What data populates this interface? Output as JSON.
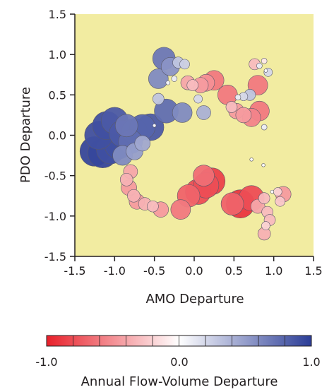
{
  "chart_data": {
    "type": "scatter",
    "xlabel": "AMO Departure",
    "ylabel": "PDO Departure",
    "xlim": [
      -1.5,
      1.5
    ],
    "ylim": [
      -1.5,
      1.5
    ],
    "x_ticks": [
      "-1.5",
      "-1.0",
      "-0.5",
      "0.0",
      "0.5",
      "1.0",
      "1.5"
    ],
    "y_ticks": [
      "1.5",
      "1.0",
      "0.5",
      "0.0",
      "-0.5",
      "-1.0",
      "-1.5"
    ],
    "grid": false,
    "plot_background": "#f2eca1",
    "marker_size_encodes": "absolute value of Annual Flow-Volume Departure",
    "colorbar": {
      "title": "Annual Flow-Volume Departure",
      "range": [
        -1.0,
        1.0
      ],
      "tick_labels": [
        "-1.0",
        "0.0",
        "1.0"
      ],
      "colors": {
        "negative": "#e8202a",
        "neutral": "#ffffff",
        "positive": "#2b3d97"
      }
    },
    "points": [
      {
        "x": -1.25,
        "y": -0.2,
        "v": 0.95
      },
      {
        "x": -1.15,
        "y": -0.22,
        "v": 0.95
      },
      {
        "x": -1.05,
        "y": -0.18,
        "v": 0.9
      },
      {
        "x": -0.95,
        "y": -0.12,
        "v": 0.9
      },
      {
        "x": -1.2,
        "y": 0.0,
        "v": 0.9
      },
      {
        "x": -1.1,
        "y": 0.12,
        "v": 0.9
      },
      {
        "x": -1.0,
        "y": 0.18,
        "v": 0.85
      },
      {
        "x": -0.9,
        "y": 0.02,
        "v": 0.85
      },
      {
        "x": -0.85,
        "y": 0.12,
        "v": 0.7
      },
      {
        "x": -0.75,
        "y": 0.05,
        "v": 0.8
      },
      {
        "x": -0.65,
        "y": 0.1,
        "v": 0.8
      },
      {
        "x": -0.8,
        "y": -0.08,
        "v": 0.75
      },
      {
        "x": -0.9,
        "y": -0.25,
        "v": 0.6
      },
      {
        "x": -0.75,
        "y": -0.2,
        "v": 0.5
      },
      {
        "x": -0.65,
        "y": -0.1,
        "v": 0.45
      },
      {
        "x": -0.55,
        "y": 0.1,
        "v": 0.85
      },
      {
        "x": -0.5,
        "y": 0.12,
        "v": 0.02
      },
      {
        "x": -0.38,
        "y": 0.95,
        "v": 0.7
      },
      {
        "x": -0.3,
        "y": 0.85,
        "v": 0.55
      },
      {
        "x": -0.2,
        "y": 0.9,
        "v": 0.3
      },
      {
        "x": -0.12,
        "y": 0.88,
        "v": 0.25
      },
      {
        "x": -0.25,
        "y": 0.7,
        "v": 0.1
      },
      {
        "x": -0.33,
        "y": 0.65,
        "v": 0.05
      },
      {
        "x": -0.45,
        "y": 0.7,
        "v": 0.6
      },
      {
        "x": -0.45,
        "y": 0.45,
        "v": 0.3
      },
      {
        "x": -0.35,
        "y": 0.3,
        "v": 0.75
      },
      {
        "x": -0.15,
        "y": 0.28,
        "v": 0.6
      },
      {
        "x": -0.08,
        "y": 0.65,
        "v": -0.4
      },
      {
        "x": -0.02,
        "y": 0.62,
        "v": -0.3
      },
      {
        "x": 0.05,
        "y": 0.45,
        "v": 0.2
      },
      {
        "x": 0.08,
        "y": 0.62,
        "v": -0.45
      },
      {
        "x": 0.15,
        "y": 0.65,
        "v": -0.5
      },
      {
        "x": 0.25,
        "y": 0.68,
        "v": -0.6
      },
      {
        "x": 0.12,
        "y": 0.28,
        "v": 0.4
      },
      {
        "x": 0.42,
        "y": 0.5,
        "v": -0.6
      },
      {
        "x": 0.47,
        "y": 0.35,
        "v": -0.3
      },
      {
        "x": 0.53,
        "y": 0.3,
        "v": -0.45
      },
      {
        "x": 0.62,
        "y": 0.25,
        "v": -0.45
      },
      {
        "x": 0.72,
        "y": 0.22,
        "v": -0.55
      },
      {
        "x": 0.82,
        "y": 0.3,
        "v": -0.6
      },
      {
        "x": 0.8,
        "y": 0.62,
        "v": -0.6
      },
      {
        "x": 0.7,
        "y": 0.5,
        "v": 0.3
      },
      {
        "x": 0.62,
        "y": 0.48,
        "v": 0.2
      },
      {
        "x": 0.55,
        "y": 0.47,
        "v": 0.1
      },
      {
        "x": 0.76,
        "y": 0.88,
        "v": -0.3
      },
      {
        "x": 0.82,
        "y": 0.86,
        "v": 0.1
      },
      {
        "x": 0.88,
        "y": 0.92,
        "v": -0.1
      },
      {
        "x": 0.9,
        "y": 0.8,
        "v": 0.02
      },
      {
        "x": 0.93,
        "y": 0.78,
        "v": 0.2
      },
      {
        "x": 0.88,
        "y": 0.1,
        "v": 0.1
      },
      {
        "x": 0.87,
        "y": -0.37,
        "v": 0.02
      },
      {
        "x": -0.8,
        "y": -0.45,
        "v": -0.4
      },
      {
        "x": -0.85,
        "y": -0.55,
        "v": -0.35
      },
      {
        "x": -0.82,
        "y": -0.65,
        "v": -0.45
      },
      {
        "x": -0.76,
        "y": -0.75,
        "v": -0.35
      },
      {
        "x": -0.72,
        "y": -0.82,
        "v": -0.45
      },
      {
        "x": -0.62,
        "y": -0.85,
        "v": -0.35
      },
      {
        "x": -0.52,
        "y": -0.88,
        "v": -0.3
      },
      {
        "x": -0.42,
        "y": -0.92,
        "v": -0.45
      },
      {
        "x": -0.17,
        "y": -0.92,
        "v": -0.6
      },
      {
        "x": -0.07,
        "y": -0.75,
        "v": -0.7
      },
      {
        "x": 0.05,
        "y": -0.7,
        "v": -0.8
      },
      {
        "x": 0.15,
        "y": -0.62,
        "v": -0.8
      },
      {
        "x": 0.22,
        "y": -0.57,
        "v": -0.85
      },
      {
        "x": 0.12,
        "y": -0.5,
        "v": -0.65
      },
      {
        "x": 0.48,
        "y": -0.85,
        "v": -0.7
      },
      {
        "x": 0.58,
        "y": -0.85,
        "v": -0.9
      },
      {
        "x": 0.72,
        "y": -0.78,
        "v": -0.8
      },
      {
        "x": 0.8,
        "y": -0.88,
        "v": -0.4
      },
      {
        "x": 0.88,
        "y": -0.78,
        "v": -0.3
      },
      {
        "x": 0.92,
        "y": -0.95,
        "v": -0.3
      },
      {
        "x": 0.95,
        "y": -1.05,
        "v": -0.3
      },
      {
        "x": 0.9,
        "y": -1.12,
        "v": -0.2
      },
      {
        "x": 0.88,
        "y": -1.22,
        "v": -0.35
      },
      {
        "x": 1.05,
        "y": -0.7,
        "v": -0.2
      },
      {
        "x": 1.08,
        "y": -0.82,
        "v": -0.25
      },
      {
        "x": 1.12,
        "y": -0.73,
        "v": -0.45
      },
      {
        "x": 0.98,
        "y": -0.7,
        "v": 0.02
      },
      {
        "x": 0.72,
        "y": -0.3,
        "v": 0.02
      }
    ]
  }
}
